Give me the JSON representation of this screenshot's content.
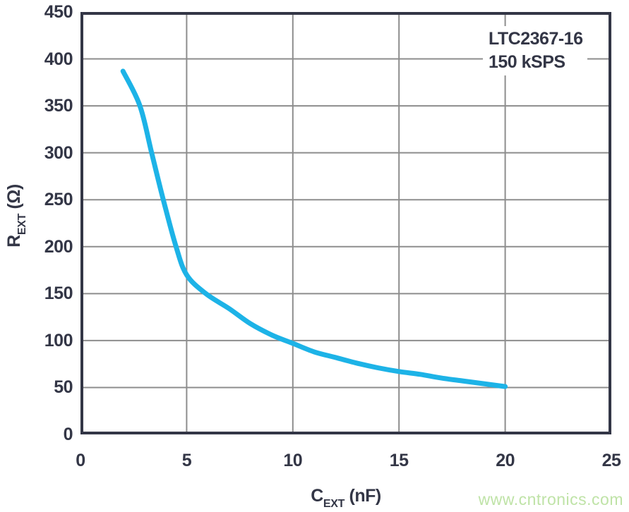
{
  "chart": {
    "y_axis": {
      "symbol": "R",
      "subscript": "EXT",
      "unit": "(Ω)"
    },
    "x_axis": {
      "symbol": "C",
      "subscript": "EXT",
      "unit": "(nF)"
    },
    "annotation": {
      "line1": "LTC2367-16",
      "line2": "150 kSPS"
    }
  },
  "watermark": {
    "text": "www.cntronics.com",
    "color": "#bfe3a7"
  },
  "colors": {
    "text_and_axis": "#333646",
    "gridline": "#8d8d8d",
    "curve": "#1db3e7",
    "background": "#ffffff"
  },
  "chart_data": {
    "type": "line",
    "title": "",
    "xlabel": "CEXT (nF)",
    "ylabel": "REXT (Ω)",
    "xlim": [
      0,
      25
    ],
    "ylim": [
      0,
      450
    ],
    "x_ticks": [
      0,
      5,
      10,
      15,
      20,
      25
    ],
    "y_ticks": [
      0,
      50,
      100,
      150,
      200,
      250,
      300,
      350,
      400,
      450
    ],
    "grid": true,
    "legend": "none",
    "annotations": [
      "LTC2367-16",
      "150 kSPS"
    ],
    "series": [
      {
        "name": "REXT vs CEXT, LTC2367-16 150 kSPS",
        "points": [
          [
            2,
            387
          ],
          [
            2.8,
            350
          ],
          [
            3.35,
            300
          ],
          [
            3.9,
            250
          ],
          [
            4.5,
            200
          ],
          [
            5,
            170
          ],
          [
            5.9,
            150
          ],
          [
            7,
            134
          ],
          [
            8,
            118
          ],
          [
            9,
            106
          ],
          [
            10,
            97
          ],
          [
            11,
            88
          ],
          [
            12,
            82
          ],
          [
            13,
            76
          ],
          [
            14,
            71
          ],
          [
            15,
            67
          ],
          [
            16,
            64
          ],
          [
            17,
            60
          ],
          [
            18,
            57
          ],
          [
            19,
            54
          ],
          [
            20,
            51
          ]
        ]
      }
    ]
  }
}
